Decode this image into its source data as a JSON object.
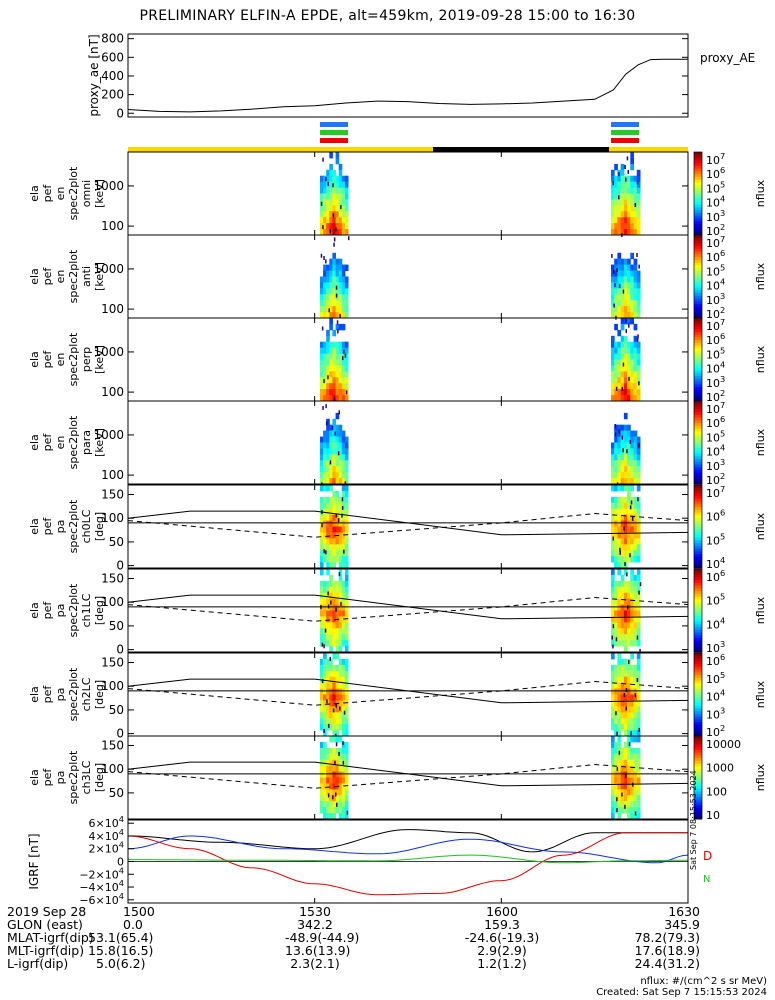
{
  "title": "PRELIMINARY ELFIN-A EPDE, alt=459km, 2019-09-28 15:00 to 16:30",
  "colors": {
    "blue": "#1f77ff",
    "green": "#22cc22",
    "red": "#ee0000",
    "yellow": "#ffd700",
    "black": "#000000",
    "igrf_black": "#000000",
    "igrf_blue": "#1030e0",
    "igrf_red": "#e00000",
    "igrf_green": "#20c020"
  },
  "chart_data": [
    {
      "type": "line",
      "ylabel": "proxy_ae [nT]",
      "legend": "proxy_AE",
      "ylim": [
        -40,
        850
      ],
      "yticks": [
        "800",
        "600",
        "400",
        "200",
        "0"
      ],
      "ytick_values": [
        800,
        600,
        400,
        200,
        0
      ],
      "x_minutes": [
        0,
        5,
        10,
        15,
        20,
        25,
        30,
        35,
        40,
        45,
        50,
        55,
        60,
        65,
        70,
        75,
        78,
        80,
        82,
        84,
        86,
        88,
        90
      ],
      "values": [
        40,
        20,
        15,
        25,
        45,
        70,
        80,
        110,
        130,
        125,
        105,
        95,
        100,
        110,
        130,
        150,
        250,
        420,
        520,
        575,
        580,
        580,
        580
      ]
    },
    {
      "type": "heatmap",
      "ylabel": [
        "ela",
        "pef",
        "en",
        "spec2plot",
        "omni",
        "[keV]"
      ],
      "yticks": [
        "1000",
        "100"
      ],
      "ytick_values": [
        1000,
        100
      ],
      "colorbar": {
        "label": "nflux",
        "ticks": [
          "10^7",
          "10^6",
          "10^5",
          "10^4",
          "10^3",
          "10^2"
        ]
      }
    },
    {
      "type": "heatmap",
      "ylabel": [
        "ela",
        "pef",
        "en",
        "spec2plot",
        "anti",
        "[keV]"
      ],
      "yticks": [
        "1000",
        "100"
      ],
      "ytick_values": [
        1000,
        100
      ],
      "colorbar": {
        "label": "nflux",
        "ticks": [
          "10^7",
          "10^6",
          "10^5",
          "10^4",
          "10^3",
          "10^2"
        ]
      }
    },
    {
      "type": "heatmap",
      "ylabel": [
        "ela",
        "pef",
        "en",
        "spec2plot",
        "perp",
        "[keV]"
      ],
      "yticks": [
        "1000",
        "100"
      ],
      "ytick_values": [
        1000,
        100
      ],
      "colorbar": {
        "label": "nflux",
        "ticks": [
          "10^7",
          "10^6",
          "10^5",
          "10^4",
          "10^3",
          "10^2"
        ]
      }
    },
    {
      "type": "heatmap",
      "ylabel": [
        "ela",
        "pef",
        "en",
        "spec2plot",
        "para",
        "[keV]"
      ],
      "yticks": [
        "1000",
        "100"
      ],
      "ytick_values": [
        1000,
        100
      ],
      "colorbar": {
        "label": "nflux",
        "ticks": [
          "10^7",
          "10^6",
          "10^5",
          "10^4",
          "10^3",
          "10^2"
        ]
      }
    },
    {
      "type": "heatmap",
      "ylabel": [
        "ela",
        "pef",
        "pa",
        "spec2plot",
        "ch0LC",
        "[deg]"
      ],
      "yticks": [
        "150",
        "100",
        "50",
        "0"
      ],
      "ytick_values": [
        150,
        100,
        50,
        0
      ],
      "colorbar": {
        "label": "nflux",
        "ticks": [
          "10^7",
          "10^6",
          "10^5",
          "10^4"
        ]
      }
    },
    {
      "type": "heatmap",
      "ylabel": [
        "ela",
        "pef",
        "pa",
        "spec2plot",
        "ch1LC",
        "[deg]"
      ],
      "yticks": [
        "150",
        "100",
        "50",
        "0"
      ],
      "ytick_values": [
        150,
        100,
        50,
        0
      ],
      "colorbar": {
        "label": "nflux",
        "ticks": [
          "10^6",
          "10^5",
          "10^4",
          "10^3"
        ]
      }
    },
    {
      "type": "heatmap",
      "ylabel": [
        "ela",
        "pef",
        "pa",
        "spec2plot",
        "ch2LC",
        "[deg]"
      ],
      "yticks": [
        "150",
        "100",
        "50",
        "0"
      ],
      "ytick_values": [
        150,
        100,
        50,
        0
      ],
      "colorbar": {
        "label": "nflux",
        "ticks": [
          "10^6",
          "10^5",
          "10^4",
          "10^3",
          "10^2"
        ]
      }
    },
    {
      "type": "heatmap",
      "ylabel": [
        "ela",
        "pef",
        "pa",
        "spec2plot",
        "ch3LC",
        "[deg]"
      ],
      "yticks": [
        "150",
        "100",
        "50"
      ],
      "ytick_values": [
        150,
        100,
        50
      ],
      "colorbar": {
        "label": "nflux",
        "ticks": [
          "10000",
          "1000",
          "100",
          "10"
        ]
      }
    },
    {
      "type": "line",
      "ylabel": "IGRF [nT]",
      "yticks": [
        "6×10^4",
        "4×10^4",
        "2×10^4",
        "0",
        "−2×10^4",
        "−4×10^4",
        "−6×10^4"
      ],
      "ytick_values": [
        60000,
        40000,
        20000,
        0,
        -20000,
        -40000,
        -60000
      ],
      "legend": "D",
      "side_labels": [
        "Sat Sep  7 08:15:53 2024",
        "N"
      ],
      "series": [
        {
          "color": "#000000",
          "x_minutes": [
            0,
            15,
            30,
            45,
            55,
            65,
            75,
            90
          ],
          "values": [
            40000,
            30000,
            20000,
            50000,
            45000,
            15000,
            45000,
            45000
          ]
        },
        {
          "color": "#1030e0",
          "x_minutes": [
            0,
            10,
            25,
            40,
            55,
            70,
            85,
            90
          ],
          "values": [
            20000,
            40000,
            20000,
            12000,
            35000,
            15000,
            -2000,
            10000
          ]
        },
        {
          "color": "#e00000",
          "x_minutes": [
            0,
            10,
            20,
            30,
            40,
            50,
            60,
            70,
            80,
            90
          ],
          "values": [
            40000,
            20000,
            -10000,
            -35000,
            -52000,
            -50000,
            -30000,
            10000,
            45000,
            45000
          ]
        },
        {
          "color": "#20c020",
          "x_minutes": [
            0,
            20,
            40,
            55,
            70,
            80,
            90
          ],
          "values": [
            3000,
            2000,
            1000,
            10000,
            -2000,
            1000,
            2000
          ]
        }
      ]
    }
  ],
  "xaxis": {
    "ticks": [
      "1500",
      "1530",
      "1600",
      "1630"
    ],
    "tick_minutes": [
      0,
      30,
      60,
      90
    ],
    "range_minutes": [
      0,
      90
    ]
  },
  "footer": {
    "rows": [
      {
        "label": "2019 Sep 28",
        "v": [
          "1500",
          "1530",
          "1600",
          "1630"
        ]
      },
      {
        "label": "GLON (east)",
        "v": [
          "0.0",
          "342.2",
          "159.3",
          "345.9"
        ]
      },
      {
        "label": "MLAT-igrf(dip)",
        "v": [
          "53.1(65.4)",
          "-48.9(-44.9)",
          "-24.6(-19.3)",
          "78.2(79.3)"
        ]
      },
      {
        "label": "MLT-igrf(dip)",
        "v": [
          "15.8(16.5)",
          "13.6(13.9)",
          "2.9(2.9)",
          "17.6(18.9)"
        ]
      },
      {
        "label": "L-igrf(dip)",
        "v": [
          "5.0(6.2)",
          "2.3(2.1)",
          "1.2(1.2)",
          "24.4(31.2)"
        ]
      }
    ],
    "units": "nflux: #/(cm^2 s sr MeV)",
    "created": "Created: Sat Sep  7 15:15:53 2024"
  }
}
